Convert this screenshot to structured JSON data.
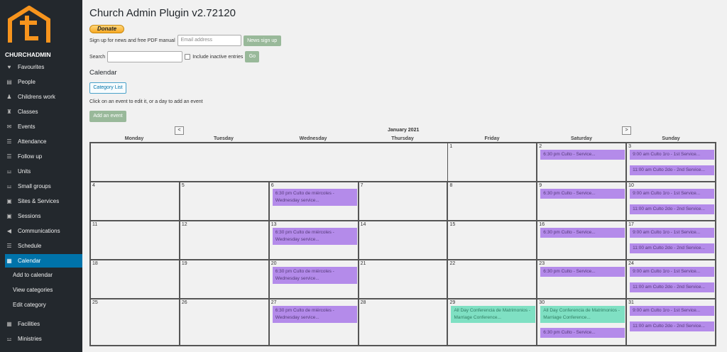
{
  "sidebar": {
    "brand": "CHURCHADMIN",
    "items": [
      {
        "label": "Favourites",
        "icon": "heart-icon",
        "g": "♥"
      },
      {
        "label": "People",
        "icon": "id-card-icon",
        "g": "▤"
      },
      {
        "label": "Childrens work",
        "icon": "child-icon",
        "g": "♟"
      },
      {
        "label": "Classes",
        "icon": "classes-icon",
        "g": "♜"
      },
      {
        "label": "Events",
        "icon": "events-icon",
        "g": "✉"
      },
      {
        "label": "Attendance",
        "icon": "list-icon",
        "g": "☰"
      },
      {
        "label": "Follow up",
        "icon": "list-icon",
        "g": "☰"
      },
      {
        "label": "Units",
        "icon": "sitemap-icon",
        "g": "⚍"
      },
      {
        "label": "Small groups",
        "icon": "sitemap-icon",
        "g": "⚍"
      },
      {
        "label": "Sites & Services",
        "icon": "building-icon",
        "g": "▣"
      },
      {
        "label": "Sessions",
        "icon": "building-icon",
        "g": "▣"
      },
      {
        "label": "Communications",
        "icon": "megaphone-icon",
        "g": "◀"
      },
      {
        "label": "Schedule",
        "icon": "list-icon",
        "g": "☰"
      },
      {
        "label": "Calendar",
        "icon": "calendar-icon",
        "g": "▦",
        "active": true
      }
    ],
    "subitems": [
      "Add to calendar",
      "View categories",
      "Edit category"
    ],
    "items2": [
      {
        "label": "Facilities",
        "icon": "calendar-icon",
        "g": "▦"
      },
      {
        "label": "Ministries",
        "icon": "sitemap-icon",
        "g": "⚍"
      }
    ]
  },
  "header": {
    "title": "Church Admin Plugin v2.72120",
    "donate": "Donate",
    "signup_label": "Sign up for news and free PDF manual",
    "email_placeholder": "Email address",
    "signup_button": "News sign up",
    "search_label": "Search",
    "search_value": "",
    "include_inactive": "Include inactive entries",
    "go": "Go"
  },
  "calendar": {
    "heading": "Calendar",
    "category_list": "Category List",
    "hint": "Click on an event to edit it, or a day to add an event",
    "add_event": "Add an event",
    "prev": "<",
    "next": ">",
    "month": "January 2021",
    "days": [
      "Monday",
      "Tuesday",
      "Wednesday",
      "Thursday",
      "Friday",
      "Saturday",
      "Sunday"
    ],
    "colors": {
      "service": "#b48bea",
      "conference": "#7fe0c3"
    },
    "weeks": [
      [
        null,
        null,
        null,
        null,
        {
          "d": "1",
          "e": []
        },
        {
          "d": "2",
          "e": [
            [
              "s",
              "6:30 pm Culto - Service..."
            ]
          ]
        },
        {
          "d": "3",
          "e": [
            [
              "s",
              "9:00 am Culto 1ro - 1st Service..."
            ],
            [
              "s",
              "11:00 am Culto 2do - 2nd Service..."
            ]
          ]
        }
      ],
      [
        {
          "d": "4",
          "e": []
        },
        {
          "d": "5",
          "e": []
        },
        {
          "d": "6",
          "e": [
            [
              "s",
              "6:30 pm Culto de miércoles - Wednesday service..."
            ]
          ]
        },
        {
          "d": "7",
          "e": []
        },
        {
          "d": "8",
          "e": []
        },
        {
          "d": "9",
          "e": [
            [
              "s",
              "6:30 pm Culto - Service..."
            ]
          ]
        },
        {
          "d": "10",
          "e": [
            [
              "s",
              "9:00 am Culto 1ro - 1st Service..."
            ],
            [
              "s",
              "11:00 am Culto 2do - 2nd Service..."
            ]
          ]
        }
      ],
      [
        {
          "d": "11",
          "e": []
        },
        {
          "d": "12",
          "e": []
        },
        {
          "d": "13",
          "e": [
            [
              "s",
              "6:30 pm Culto de miércoles - Wednesday service..."
            ]
          ]
        },
        {
          "d": "14",
          "e": []
        },
        {
          "d": "15",
          "e": []
        },
        {
          "d": "16",
          "e": [
            [
              "s",
              "6:30 pm Culto - Service..."
            ]
          ]
        },
        {
          "d": "17",
          "e": [
            [
              "s",
              "9:00 am Culto 1ro - 1st Service..."
            ],
            [
              "s",
              "11:00 am Culto 2do - 2nd Service..."
            ]
          ]
        }
      ],
      [
        {
          "d": "18",
          "e": []
        },
        {
          "d": "19",
          "e": []
        },
        {
          "d": "20",
          "e": [
            [
              "s",
              "6:30 pm Culto de miércoles - Wednesday service..."
            ]
          ]
        },
        {
          "d": "21",
          "e": []
        },
        {
          "d": "22",
          "e": []
        },
        {
          "d": "23",
          "e": [
            [
              "s",
              "6:30 pm Culto - Service..."
            ]
          ]
        },
        {
          "d": "24",
          "e": [
            [
              "s",
              "9:00 am Culto 1ro - 1st Service..."
            ],
            [
              "s",
              "11:00 am Culto 2do - 2nd Service..."
            ]
          ]
        }
      ],
      [
        {
          "d": "25",
          "e": []
        },
        {
          "d": "26",
          "e": []
        },
        {
          "d": "27",
          "e": [
            [
              "s",
              "6:30 pm Culto de miércoles - Wednesday service..."
            ]
          ]
        },
        {
          "d": "28",
          "e": []
        },
        {
          "d": "29",
          "e": [
            [
              "c",
              "All Day Conferencia de Matrimonios - Marriage Conference..."
            ]
          ]
        },
        {
          "d": "30",
          "e": [
            [
              "c",
              "All Day Conferencia de Matrimonios - Marriage Conference..."
            ],
            [
              "s",
              "6:30 pm Culto - Service..."
            ]
          ]
        },
        {
          "d": "31",
          "e": [
            [
              "s",
              "9:00 am Culto 1ro - 1st Service..."
            ],
            [
              "s",
              "11:00 am Culto 2do - 2nd Service..."
            ]
          ]
        }
      ]
    ]
  }
}
